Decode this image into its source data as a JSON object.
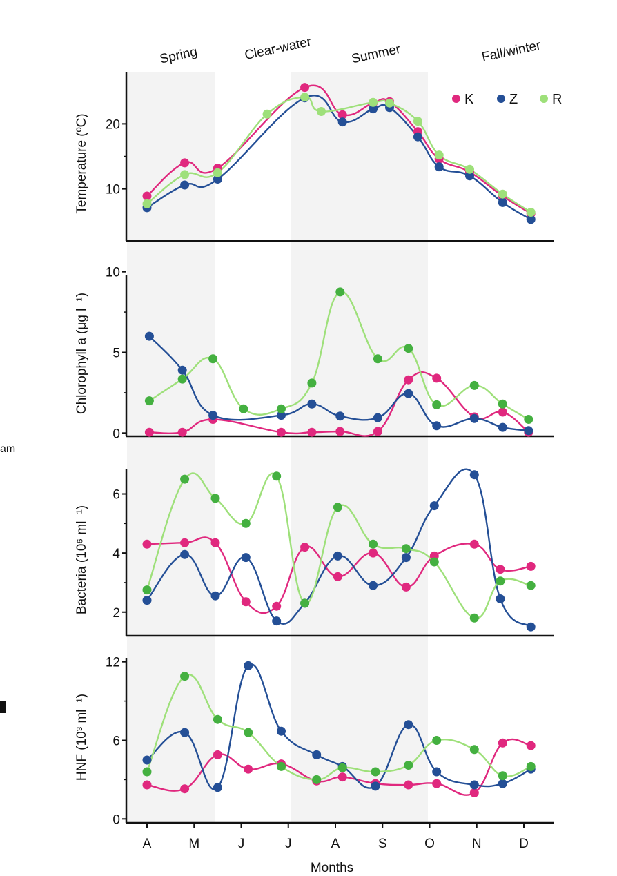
{
  "figure": {
    "seasons": [
      "Spring",
      "Clear-water",
      "Summer",
      "Fall/winter"
    ],
    "x_tick_labels": [
      "A",
      "M",
      "J",
      "J",
      "A",
      "S",
      "O",
      "N",
      "D"
    ],
    "xlabel": "Months",
    "legend": [
      {
        "name": "K",
        "color": "#e0287e"
      },
      {
        "name": "Z",
        "color": "#244f96"
      },
      {
        "name": "R",
        "color": "#9ee07a"
      }
    ],
    "margin_fragment": "am"
  },
  "chart_data": [
    {
      "type": "line",
      "title": "",
      "xlabel": "Months",
      "ylabel": "Temperature (ºC)",
      "ylim": [
        2,
        28
      ],
      "yticks": [
        10,
        20
      ],
      "x": [
        0.0,
        0.8,
        1.5,
        2.55,
        3.35,
        3.7,
        4.15,
        4.8,
        5.15,
        5.75,
        6.2,
        6.85,
        7.55,
        8.15
      ],
      "series": [
        {
          "name": "K",
          "color": "#e0287e",
          "values": [
            8.9,
            14.0,
            13.2,
            null,
            25.6,
            null,
            21.4,
            23.2,
            23.4,
            18.8,
            14.6,
            12.6,
            8.9,
            6.2
          ]
        },
        {
          "name": "Z",
          "color": "#244f96",
          "values": [
            7.1,
            10.6,
            11.5,
            null,
            24.0,
            null,
            20.3,
            22.3,
            22.5,
            18.0,
            13.4,
            12.0,
            7.9,
            5.3
          ]
        },
        {
          "name": "R",
          "color": "#9ee07a",
          "values": [
            7.7,
            12.2,
            12.5,
            21.5,
            24.1,
            21.9,
            null,
            23.3,
            23.2,
            20.4,
            15.2,
            13.0,
            9.2,
            6.4
          ]
        }
      ],
      "point_colors": {
        "K": "#e0287e",
        "Z": "#244f96",
        "R": "#9ee07a"
      }
    },
    {
      "type": "line",
      "title": "",
      "xlabel": "Months",
      "ylabel": "Chlorophyll a (μg l⁻¹)",
      "ylim": [
        -0.2,
        10.2
      ],
      "yticks": [
        0,
        5,
        10
      ],
      "x": [
        0.05,
        0.75,
        1.4,
        2.05,
        2.85,
        3.5,
        4.1,
        4.9,
        5.55,
        6.15,
        6.95,
        7.55,
        8.1
      ],
      "series": [
        {
          "name": "K",
          "color": "#e0287e",
          "values": [
            0.05,
            0.05,
            0.85,
            null,
            0.05,
            0.05,
            0.1,
            0.1,
            3.3,
            3.4,
            1.0,
            1.3,
            0.05
          ]
        },
        {
          "name": "Z",
          "color": "#244f96",
          "values": [
            6.0,
            3.9,
            1.1,
            null,
            1.1,
            1.8,
            1.05,
            0.95,
            2.45,
            0.45,
            0.9,
            0.35,
            0.15
          ]
        },
        {
          "name": "R",
          "color": "#9ee07a",
          "values": [
            2.0,
            3.35,
            4.6,
            1.5,
            1.5,
            3.1,
            8.75,
            4.6,
            5.25,
            1.75,
            2.95,
            1.8,
            0.85
          ]
        }
      ],
      "point_colors": {
        "K": "#e0287e",
        "Z": "#244f96",
        "R": "#44b040"
      }
    },
    {
      "type": "line",
      "title": "",
      "xlabel": "Months",
      "ylabel": "Bacteria (10⁶ ml⁻¹)",
      "ylim": [
        1.2,
        6.9
      ],
      "yticks": [
        2,
        4,
        6
      ],
      "x": [
        0.0,
        0.8,
        1.45,
        2.1,
        2.75,
        3.35,
        4.05,
        4.8,
        5.5,
        6.1,
        6.95,
        7.5,
        8.15
      ],
      "series": [
        {
          "name": "K",
          "color": "#e0287e",
          "values": [
            4.3,
            4.35,
            4.35,
            2.35,
            2.2,
            4.2,
            3.2,
            4.0,
            2.85,
            3.9,
            4.3,
            3.45,
            3.55
          ]
        },
        {
          "name": "Z",
          "color": "#244f96",
          "values": [
            2.4,
            3.95,
            2.55,
            3.85,
            1.7,
            2.3,
            3.9,
            2.9,
            3.85,
            5.6,
            6.65,
            2.45,
            1.5
          ]
        },
        {
          "name": "R",
          "color": "#9ee07a",
          "values": [
            2.75,
            6.5,
            5.85,
            5.0,
            6.6,
            2.3,
            5.55,
            4.3,
            4.15,
            3.7,
            1.8,
            3.05,
            2.9
          ]
        }
      ],
      "point_colors": {
        "K": "#e0287e",
        "Z": "#244f96",
        "R": "#44b040"
      }
    },
    {
      "type": "line",
      "title": "",
      "xlabel": "Months",
      "ylabel": "HNF (10³ ml⁻¹)",
      "ylim": [
        -0.3,
        12.3
      ],
      "yticks": [
        0,
        6,
        12
      ],
      "x": [
        0.0,
        0.8,
        1.5,
        2.15,
        2.85,
        3.6,
        4.15,
        4.85,
        5.55,
        6.15,
        6.95,
        7.55,
        8.15
      ],
      "series": [
        {
          "name": "K",
          "color": "#e0287e",
          "values": [
            2.6,
            2.3,
            4.9,
            3.8,
            4.2,
            2.9,
            3.2,
            2.7,
            2.6,
            2.7,
            2.0,
            5.8,
            5.6
          ]
        },
        {
          "name": "Z",
          "color": "#244f96",
          "values": [
            4.5,
            6.6,
            2.4,
            11.7,
            6.7,
            4.9,
            4.0,
            2.5,
            7.2,
            3.6,
            2.6,
            2.7,
            3.8
          ]
        },
        {
          "name": "R",
          "color": "#9ee07a",
          "values": [
            3.6,
            10.9,
            7.6,
            6.6,
            4.0,
            3.0,
            3.9,
            3.6,
            4.1,
            6.0,
            5.3,
            3.3,
            4.0
          ]
        }
      ],
      "point_colors": {
        "K": "#e0287e",
        "Z": "#244f96",
        "R": "#44b040"
      }
    }
  ]
}
